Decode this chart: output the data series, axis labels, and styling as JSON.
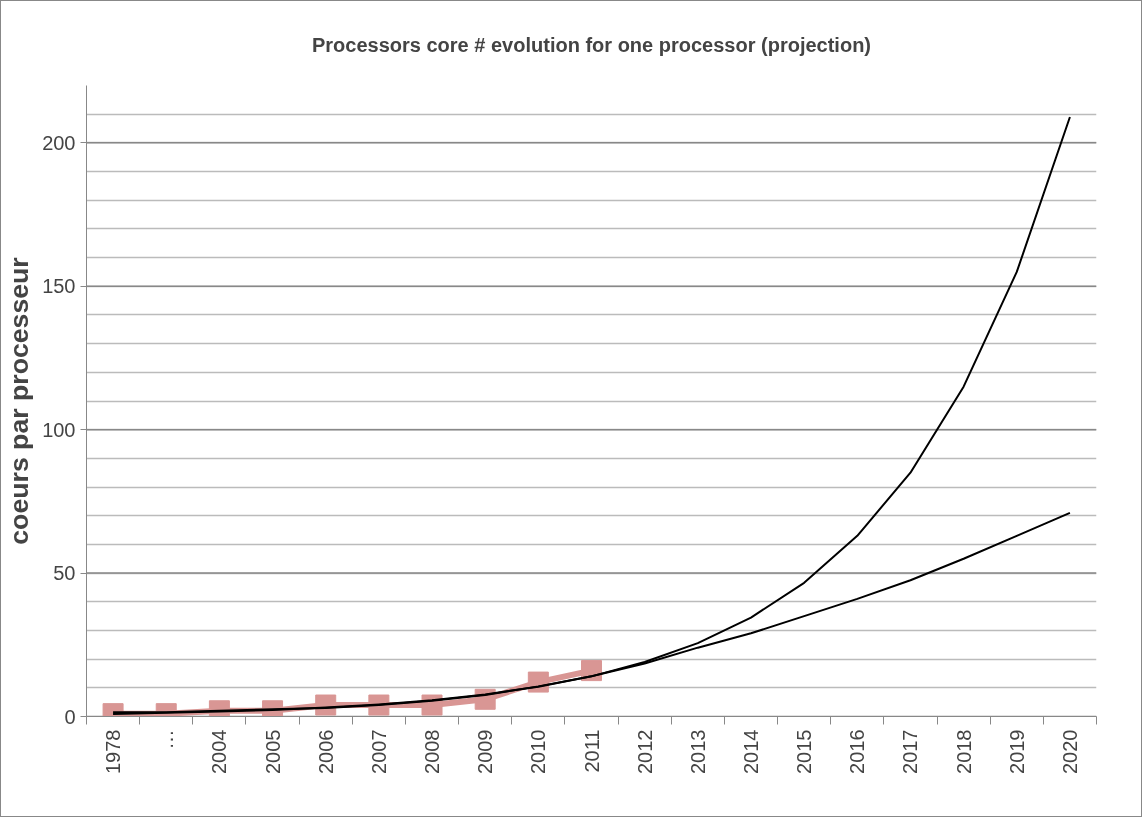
{
  "chart_data": {
    "type": "line",
    "title": "Processors core # evolution for one processor (projection)",
    "ylabel": "coeurs par processeur",
    "categories": [
      "1978",
      "…",
      "2004",
      "2005",
      "2006",
      "2007",
      "2008",
      "2009",
      "2010",
      "2011",
      "2012",
      "2013",
      "2014",
      "2015",
      "2016",
      "2017",
      "2018",
      "2019",
      "2020"
    ],
    "series": [
      {
        "color": "#d99694",
        "marker": "square",
        "values": [
          1,
          1,
          2,
          2,
          4,
          4,
          4,
          6,
          12,
          16,
          null,
          null,
          null,
          null,
          null,
          null,
          null,
          null,
          null
        ]
      },
      {
        "color": "#000000",
        "marker": "none",
        "values": [
          0.9,
          1.3,
          1.7,
          2.3,
          3.1,
          4.2,
          5.7,
          7.7,
          10.4,
          14,
          19,
          25.6,
          34.5,
          46.6,
          63,
          85,
          115,
          155,
          209
        ]
      },
      {
        "color": "#000000",
        "marker": "none",
        "values": [
          1.5,
          1.5,
          2,
          2.5,
          3,
          4,
          5.5,
          7.5,
          10.5,
          14,
          18.5,
          24,
          29,
          35,
          41,
          47.5,
          55,
          63,
          71
        ]
      }
    ],
    "ylim": [
      0,
      220
    ],
    "yticks": [
      0,
      {
        "value": 10,
        "label": null
      },
      {
        "value": 20,
        "label": null
      },
      {
        "value": 30,
        "label": null
      },
      {
        "value": 40,
        "label": null
      },
      50,
      {
        "value": 60,
        "label": null
      },
      {
        "value": 70,
        "label": null
      },
      {
        "value": 80,
        "label": null
      },
      {
        "value": 90,
        "label": null
      },
      100,
      {
        "value": 110,
        "label": null
      },
      {
        "value": 120,
        "label": null
      },
      {
        "value": 130,
        "label": null
      },
      {
        "value": 140,
        "label": null
      },
      150,
      {
        "value": 160,
        "label": null
      },
      {
        "value": 170,
        "label": null
      },
      {
        "value": 180,
        "label": null
      },
      {
        "value": 190,
        "label": null
      },
      200,
      {
        "value": 210,
        "label": null
      }
    ],
    "grid": "y"
  }
}
